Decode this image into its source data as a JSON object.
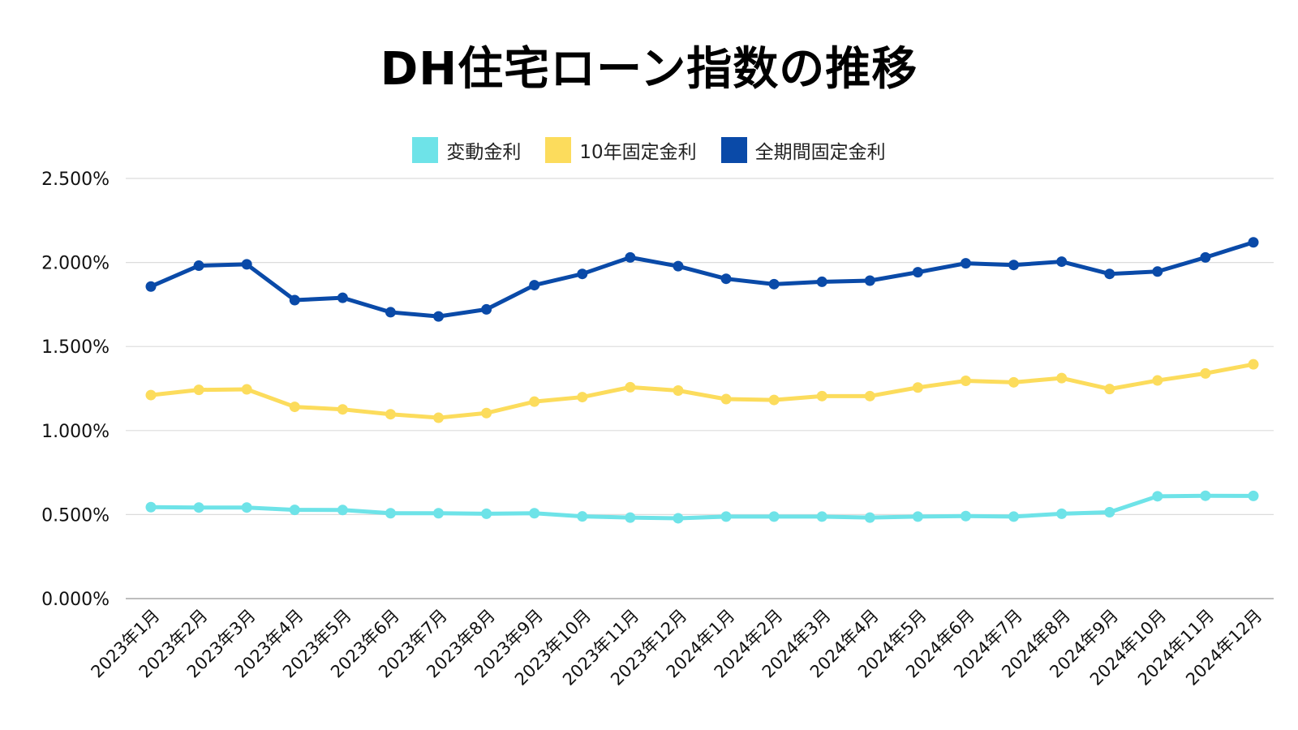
{
  "chart_data": {
    "type": "line",
    "title": "DH住宅ローン指数の推移",
    "xlabel": "",
    "ylabel": "",
    "ylim": [
      0,
      2.5
    ],
    "yticks": [
      {
        "value": 0.0,
        "label": "0.000%"
      },
      {
        "value": 0.5,
        "label": "0.500%"
      },
      {
        "value": 1.0,
        "label": "1.000%"
      },
      {
        "value": 1.5,
        "label": "1.500%"
      },
      {
        "value": 2.0,
        "label": "2.000%"
      },
      {
        "value": 2.5,
        "label": "2.500%"
      }
    ],
    "grid": true,
    "legend_position": "top-center",
    "categories": [
      "2023年1月",
      "2023年2月",
      "2023年3月",
      "2023年4月",
      "2023年5月",
      "2023年6月",
      "2023年7月",
      "2023年8月",
      "2023年9月",
      "2023年10月",
      "2023年11月",
      "2023年12月",
      "2024年1月",
      "2024年2月",
      "2024年3月",
      "2024年4月",
      "2024年5月",
      "2024年6月",
      "2024年7月",
      "2024年8月",
      "2024年9月",
      "2024年10月",
      "2024年11月",
      "2024年12月"
    ],
    "series": [
      {
        "name": "変動金利",
        "color": "#6ee3e8",
        "values": [
          0.544,
          0.542,
          0.542,
          0.528,
          0.527,
          0.508,
          0.508,
          0.505,
          0.508,
          0.489,
          0.482,
          0.478,
          0.488,
          0.488,
          0.488,
          0.482,
          0.488,
          0.491,
          0.488,
          0.505,
          0.514,
          0.609,
          0.612,
          0.611
        ]
      },
      {
        "name": "10年固定金利",
        "color": "#fcdc5c",
        "values": [
          1.211,
          1.242,
          1.245,
          1.141,
          1.126,
          1.097,
          1.076,
          1.104,
          1.172,
          1.199,
          1.258,
          1.238,
          1.187,
          1.182,
          1.205,
          1.205,
          1.256,
          1.296,
          1.287,
          1.312,
          1.247,
          1.298,
          1.34,
          1.394
        ]
      },
      {
        "name": "全期間固定金利",
        "color": "#0a4aa8",
        "values": [
          1.857,
          1.981,
          1.989,
          1.776,
          1.79,
          1.704,
          1.679,
          1.721,
          1.865,
          1.932,
          2.03,
          1.978,
          1.903,
          1.871,
          1.885,
          1.892,
          1.942,
          1.995,
          1.985,
          2.005,
          1.932,
          1.946,
          2.03,
          2.12
        ]
      }
    ]
  }
}
